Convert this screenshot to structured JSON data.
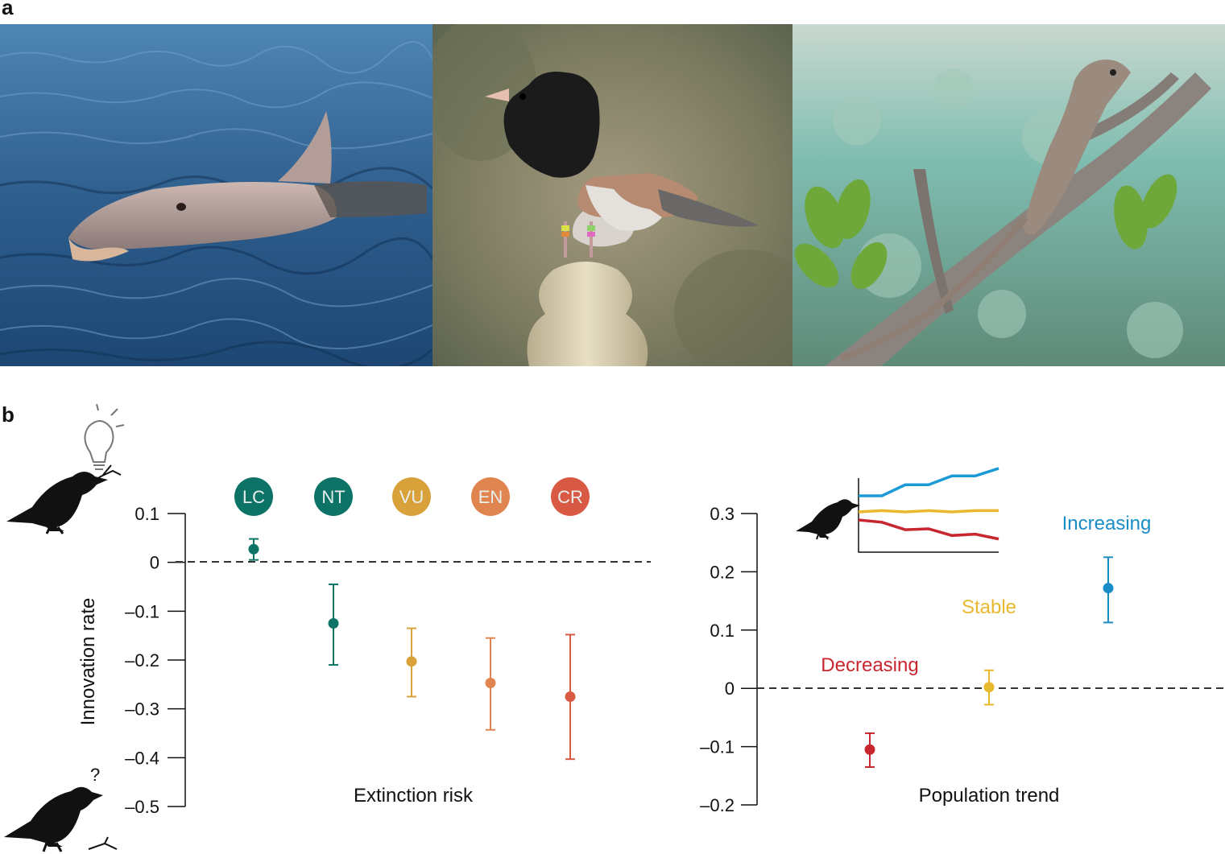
{
  "panels": {
    "a": {
      "label": "a"
    },
    "b": {
      "label": "b"
    }
  },
  "photos": [
    {
      "subject": "dolphin-photo"
    },
    {
      "subject": "junco-bird-photo"
    },
    {
      "subject": "anole-lizard-photo"
    }
  ],
  "chart_data": [
    {
      "type": "scatter",
      "title": "",
      "xlabel": "Extinction risk",
      "ylabel": "Innovation rate",
      "ylim": [
        -0.5,
        0.1
      ],
      "yticks": [
        0.1,
        0,
        -0.1,
        -0.2,
        -0.3,
        -0.4,
        -0.5
      ],
      "ytick_labels": [
        "0.1",
        "0",
        "–0.1",
        "–0.2",
        "–0.3",
        "–0.4",
        "–0.5"
      ],
      "reference_line": 0,
      "categories": [
        "LC",
        "NT",
        "VU",
        "EN",
        "CR"
      ],
      "series": [
        {
          "category": "LC",
          "value": 0.027,
          "lower": 0.005,
          "upper": 0.048,
          "color": "#0e7367"
        },
        {
          "category": "NT",
          "value": -0.125,
          "lower": -0.21,
          "upper": -0.045,
          "color": "#0e7367"
        },
        {
          "category": "VU",
          "value": -0.203,
          "lower": -0.275,
          "upper": -0.135,
          "color": "#d9a13a"
        },
        {
          "category": "EN",
          "value": -0.247,
          "lower": -0.343,
          "upper": -0.155,
          "color": "#e0854f"
        },
        {
          "category": "CR",
          "value": -0.275,
          "lower": -0.403,
          "upper": -0.148,
          "color": "#d95a44"
        }
      ],
      "badge_colors": {
        "LC": "#0e7367",
        "NT": "#0e7367",
        "VU": "#d9a13a",
        "EN": "#e0854f",
        "CR": "#d95a44"
      },
      "icons": [
        "lightbulb-icon",
        "bird-innovative-icon",
        "bird-question-icon"
      ],
      "question_mark": "?"
    },
    {
      "type": "scatter",
      "title": "",
      "xlabel": "Population trend",
      "ylim": [
        -0.2,
        0.3
      ],
      "yticks": [
        0.3,
        0.2,
        0.1,
        0,
        -0.1,
        -0.2
      ],
      "ytick_labels": [
        "0.3",
        "0.2",
        "0.1",
        "0",
        "–0.1",
        "–0.2"
      ],
      "reference_line": 0,
      "series": [
        {
          "name": "Decreasing",
          "value": -0.105,
          "lower": -0.135,
          "upper": -0.077,
          "color": "#c7262f"
        },
        {
          "name": "Stable",
          "value": 0.002,
          "lower": -0.028,
          "upper": 0.031,
          "color": "#e8b92e"
        },
        {
          "name": "Increasing",
          "value": 0.172,
          "lower": 0.113,
          "upper": 0.225,
          "color": "#1b8dc6"
        }
      ],
      "inset": {
        "type": "line",
        "icon": "bird-icon",
        "lines": [
          {
            "color": "#1b9ad6",
            "values": [
              0.0,
              0.0,
              0.25,
              0.25,
              0.45,
              0.45,
              0.62
            ]
          },
          {
            "color": "#e8b92e",
            "values": [
              0.0,
              0.03,
              0.0,
              0.03,
              0.0,
              0.03,
              0.03
            ]
          },
          {
            "color": "#c7262f",
            "values": [
              0.0,
              -0.05,
              -0.22,
              -0.2,
              -0.35,
              -0.32,
              -0.43
            ]
          }
        ]
      }
    }
  ]
}
